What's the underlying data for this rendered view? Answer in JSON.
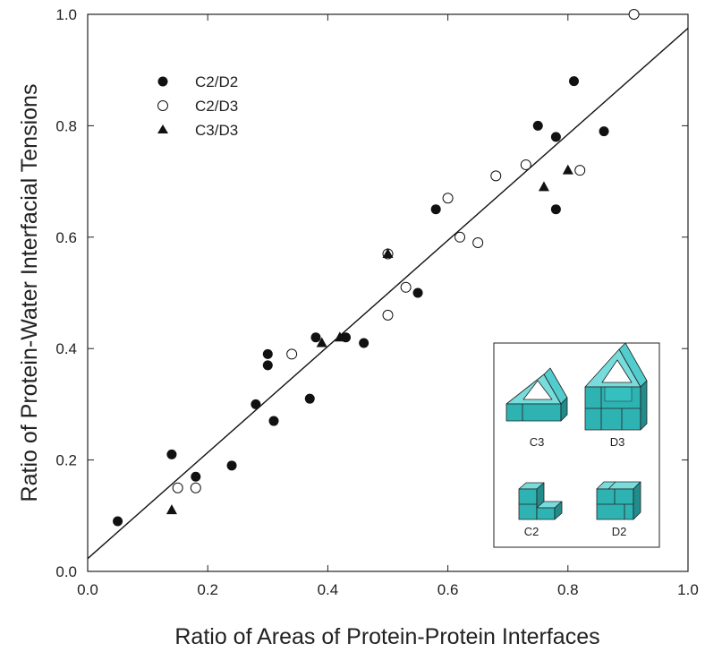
{
  "chart_data": {
    "type": "scatter",
    "title": "",
    "xlabel": "Ratio of Areas of Protein-Protein Interfaces",
    "ylabel": "Ratio of Protein-Water Interfacial Tensions",
    "xlim": [
      0.0,
      1.0
    ],
    "ylim": [
      0.0,
      1.0
    ],
    "x_ticks": [
      "0.0",
      "0.2",
      "0.4",
      "0.6",
      "0.8",
      "1.0"
    ],
    "y_ticks": [
      "0.0",
      "0.2",
      "0.4",
      "0.6",
      "0.8",
      "1.0"
    ],
    "grid": false,
    "legend_position": "top-left",
    "series": [
      {
        "name": "C2/D2",
        "marker": "filled-circle",
        "points": [
          [
            0.05,
            0.09
          ],
          [
            0.14,
            0.21
          ],
          [
            0.18,
            0.17
          ],
          [
            0.24,
            0.19
          ],
          [
            0.28,
            0.3
          ],
          [
            0.3,
            0.39
          ],
          [
            0.3,
            0.37
          ],
          [
            0.31,
            0.27
          ],
          [
            0.37,
            0.31
          ],
          [
            0.38,
            0.42
          ],
          [
            0.43,
            0.42
          ],
          [
            0.46,
            0.41
          ],
          [
            0.5,
            0.57
          ],
          [
            0.55,
            0.5
          ],
          [
            0.58,
            0.65
          ],
          [
            0.75,
            0.8
          ],
          [
            0.78,
            0.78
          ],
          [
            0.78,
            0.65
          ],
          [
            0.81,
            0.88
          ],
          [
            0.86,
            0.79
          ]
        ]
      },
      {
        "name": "C2/D3",
        "marker": "open-circle",
        "points": [
          [
            0.15,
            0.15
          ],
          [
            0.18,
            0.15
          ],
          [
            0.34,
            0.39
          ],
          [
            0.5,
            0.46
          ],
          [
            0.5,
            0.57
          ],
          [
            0.53,
            0.51
          ],
          [
            0.6,
            0.67
          ],
          [
            0.62,
            0.6
          ],
          [
            0.65,
            0.59
          ],
          [
            0.68,
            0.71
          ],
          [
            0.73,
            0.73
          ],
          [
            0.82,
            0.72
          ],
          [
            0.91,
            1.0
          ]
        ]
      },
      {
        "name": "C3/D3",
        "marker": "filled-triangle",
        "points": [
          [
            0.14,
            0.11
          ],
          [
            0.39,
            0.41
          ],
          [
            0.42,
            0.42
          ],
          [
            0.5,
            0.57
          ],
          [
            0.76,
            0.69
          ],
          [
            0.8,
            0.72
          ]
        ]
      }
    ],
    "fit_line": {
      "x": [
        0.0,
        1.0
      ],
      "y": [
        0.023,
        0.975
      ]
    },
    "inset": {
      "labels": {
        "c3": "C3",
        "d3": "D3",
        "c2": "C2",
        "d2": "D2"
      },
      "shape_color": "#3cc8c8"
    }
  }
}
